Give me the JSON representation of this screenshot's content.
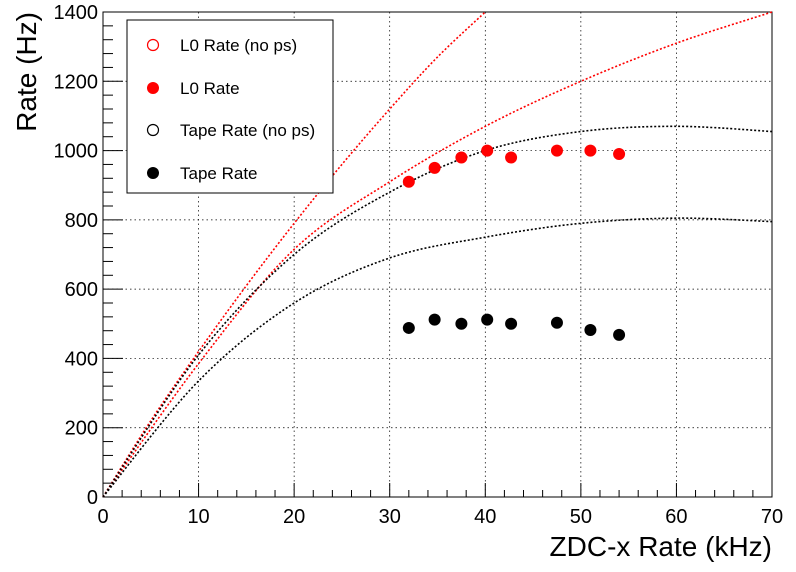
{
  "chart_data": {
    "type": "scatter",
    "xlabel": "ZDC-x Rate (kHz)",
    "ylabel": "Rate (Hz)",
    "xlim": [
      0,
      70
    ],
    "ylim": [
      0,
      1400
    ],
    "xticks": [
      "0",
      "10",
      "20",
      "30",
      "40",
      "50",
      "60",
      "70"
    ],
    "yticks": [
      "0",
      "200",
      "400",
      "600",
      "800",
      "1000",
      "1200",
      "1400"
    ],
    "grid": true,
    "legend_position": "top-left",
    "series": [
      {
        "name": "L0 Rate (no ps)",
        "marker": "open-circle",
        "color": "#ff0000",
        "style": "dotted",
        "x": [
          0,
          5,
          10,
          15,
          20,
          25,
          30,
          35,
          40
        ],
        "y": [
          0,
          220,
          420,
          610,
          790,
          960,
          1120,
          1270,
          1400
        ]
      },
      {
        "name": "L0 Rate (no ps)",
        "marker": "open-circle",
        "color": "#ff0000",
        "style": "dotted",
        "x": [
          0,
          10,
          20,
          30,
          40,
          50,
          60,
          70
        ],
        "y": [
          0,
          385,
          715,
          910,
          1070,
          1200,
          1310,
          1400
        ]
      },
      {
        "name": "L0 Rate",
        "marker": "filled-circle",
        "color": "#ff0000",
        "x": [
          32,
          34.7,
          37.5,
          40.2,
          42.7,
          47.5,
          51,
          54
        ],
        "y": [
          910,
          950,
          980,
          1000,
          980,
          1000,
          1000,
          990
        ]
      },
      {
        "name": "Tape Rate (no ps)",
        "marker": "open-circle",
        "color": "#000000",
        "style": "dotted",
        "x": [
          0,
          10,
          20,
          30,
          40,
          50,
          60,
          70
        ],
        "y": [
          0,
          410,
          700,
          880,
          1000,
          1055,
          1070,
          1055
        ]
      },
      {
        "name": "Tape Rate (no ps)",
        "marker": "open-circle",
        "color": "#000000",
        "style": "dotted",
        "x": [
          0,
          10,
          20,
          30,
          40,
          50,
          60,
          70
        ],
        "y": [
          0,
          335,
          560,
          690,
          750,
          790,
          805,
          795
        ]
      },
      {
        "name": "Tape Rate",
        "marker": "filled-circle",
        "color": "#000000",
        "x": [
          32,
          34.7,
          37.5,
          40.2,
          42.7,
          47.5,
          51,
          54
        ],
        "y": [
          488,
          512,
          500,
          512,
          500,
          503,
          482,
          468
        ]
      }
    ]
  }
}
